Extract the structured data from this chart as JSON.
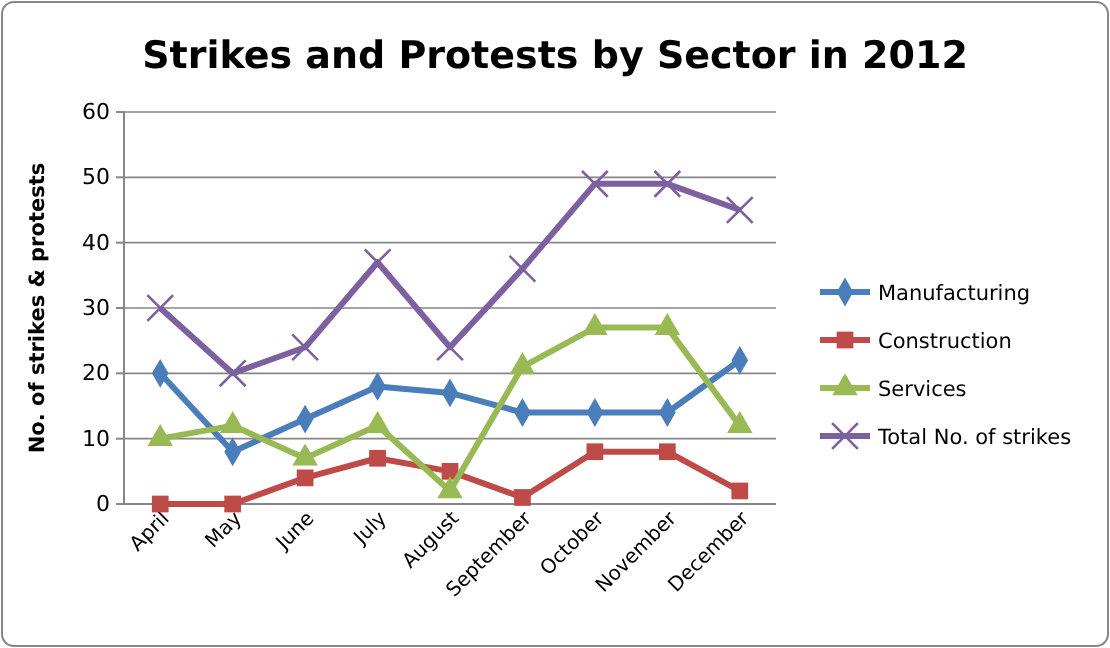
{
  "chart_data": {
    "type": "line",
    "title": "Strikes and Protests by Sector in 2012",
    "ylabel": "No. of strikes & protests",
    "categories": [
      "April",
      "May",
      "June",
      "July",
      "August",
      "September",
      "October",
      "November",
      "December"
    ],
    "series": [
      {
        "name": "Manufacturing",
        "color": "#4a7ebb",
        "marker": "diamond",
        "values": [
          20,
          8,
          13,
          18,
          17,
          14,
          14,
          14,
          22
        ]
      },
      {
        "name": "Construction",
        "color": "#be4b48",
        "marker": "square",
        "values": [
          0,
          0,
          4,
          7,
          5,
          1,
          8,
          8,
          2
        ]
      },
      {
        "name": "Services",
        "color": "#98b954",
        "marker": "triangle",
        "values": [
          10,
          12,
          7,
          12,
          2,
          21,
          27,
          27,
          12
        ]
      },
      {
        "name": "Total No. of strikes",
        "color": "#7d60a0",
        "marker": "cross",
        "values": [
          30,
          20,
          24,
          37,
          24,
          36,
          49,
          49,
          45
        ]
      }
    ],
    "ylim": [
      0,
      60
    ],
    "yticks": [
      0,
      10,
      20,
      30,
      40,
      50,
      60
    ],
    "grid": "y",
    "legend": "right",
    "line_style": "solid"
  }
}
